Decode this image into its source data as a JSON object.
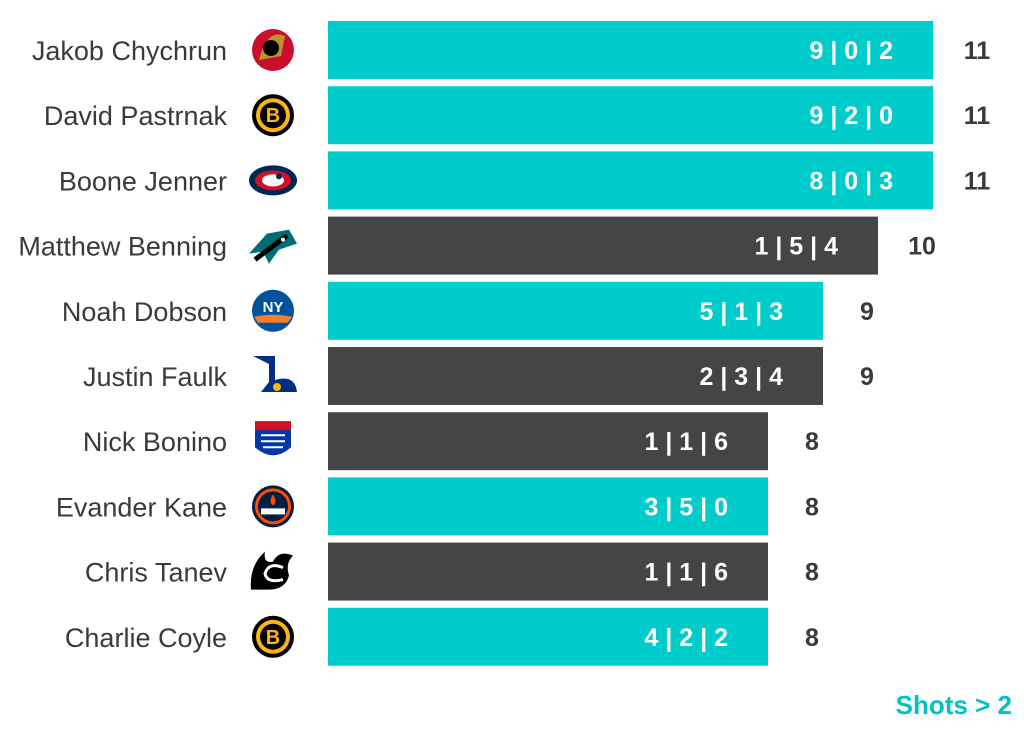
{
  "chart_data": {
    "type": "bar",
    "orientation": "horizontal",
    "note": "Shots > 2",
    "colors": {
      "teal": "#00cccc",
      "dark": "#454545",
      "note": "#00c2c2",
      "text": "#3a3a3a"
    },
    "rows": [
      {
        "player": "Jakob Chychrun",
        "team_logo": "senators-logo",
        "value": 11,
        "label": "9 | 0 | 2",
        "color": "teal"
      },
      {
        "player": "David Pastrnak",
        "team_logo": "bruins-logo",
        "value": 11,
        "label": "9 | 2 | 0",
        "color": "teal"
      },
      {
        "player": "Boone Jenner",
        "team_logo": "blue-jackets-logo",
        "value": 11,
        "label": "8 | 0 | 3",
        "color": "teal"
      },
      {
        "player": "Matthew Benning",
        "team_logo": "sharks-logo",
        "value": 10,
        "label": "1 | 5 | 4",
        "color": "dark"
      },
      {
        "player": "Noah Dobson",
        "team_logo": "islanders-logo",
        "value": 9,
        "label": "5 | 1 | 3",
        "color": "teal"
      },
      {
        "player": "Justin Faulk",
        "team_logo": "blues-logo",
        "value": 9,
        "label": "2 | 3 | 4",
        "color": "dark"
      },
      {
        "player": "Nick Bonino",
        "team_logo": "rangers-logo",
        "value": 8,
        "label": "1 | 1 | 6",
        "color": "dark"
      },
      {
        "player": "Evander Kane",
        "team_logo": "oilers-logo",
        "value": 8,
        "label": "3 | 5 | 0",
        "color": "teal"
      },
      {
        "player": "Chris Tanev",
        "team_logo": "flames-logo",
        "value": 8,
        "label": "1 | 1 | 6",
        "color": "dark"
      },
      {
        "player": "Charlie Coyle",
        "team_logo": "bruins-logo",
        "value": 8,
        "label": "4 | 2 | 2",
        "color": "teal"
      }
    ]
  }
}
